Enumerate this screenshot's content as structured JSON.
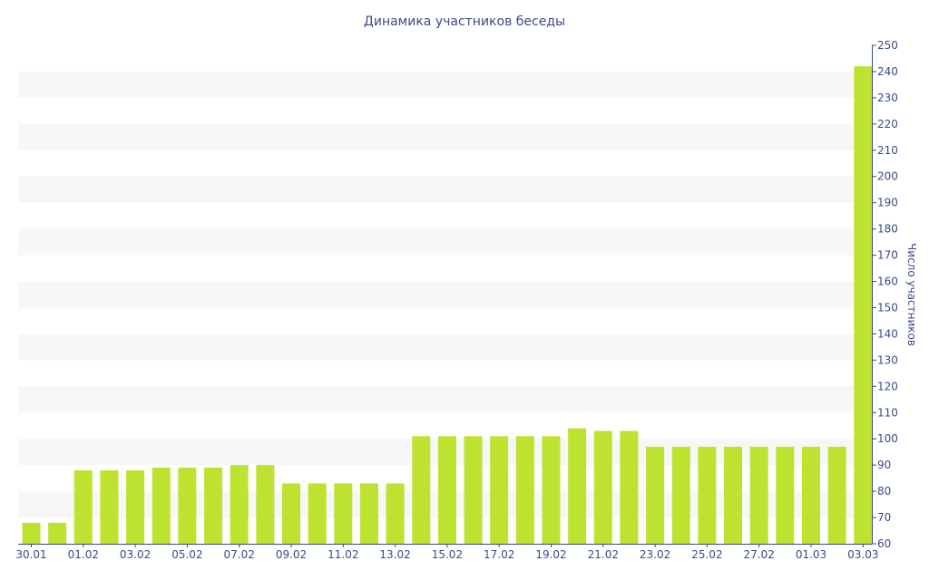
{
  "chart_data": {
    "type": "bar",
    "title": "Динамика участников беседы",
    "xlabel": "",
    "ylabel": "Число участников",
    "ylim": [
      60,
      250
    ],
    "yticks": [
      60,
      70,
      80,
      90,
      100,
      110,
      120,
      130,
      140,
      150,
      160,
      170,
      180,
      190,
      200,
      210,
      220,
      230,
      240,
      250
    ],
    "y_axis_position": "right",
    "grid": "alternating horizontal bands",
    "legend": "none",
    "bar_color": "#bde230",
    "band_color": "#f7f7f7",
    "text_color": "#3b4a8a",
    "categories": [
      "30.01",
      "31.01",
      "01.02",
      "02.02",
      "03.02",
      "04.02",
      "05.02",
      "06.02",
      "07.02",
      "08.02",
      "09.02",
      "10.02",
      "11.02",
      "12.02",
      "13.02",
      "14.02",
      "15.02",
      "16.02",
      "17.02",
      "18.02",
      "19.02",
      "20.02",
      "21.02",
      "22.02",
      "23.02",
      "24.02",
      "25.02",
      "26.02",
      "27.02",
      "28.02",
      "01.03",
      "02.03",
      "03.03"
    ],
    "tick_labels": [
      "30.01",
      "01.02",
      "03.02",
      "05.02",
      "07.02",
      "09.02",
      "11.02",
      "13.02",
      "15.02",
      "17.02",
      "19.02",
      "21.02",
      "23.02",
      "25.02",
      "27.02",
      "01.03",
      "03.03"
    ],
    "values": [
      68,
      68,
      88,
      88,
      88,
      89,
      89,
      89,
      90,
      90,
      83,
      83,
      83,
      83,
      83,
      101,
      101,
      101,
      101,
      101,
      101,
      104,
      103,
      103,
      97,
      97,
      97,
      97,
      97,
      97,
      97,
      97,
      242
    ]
  }
}
